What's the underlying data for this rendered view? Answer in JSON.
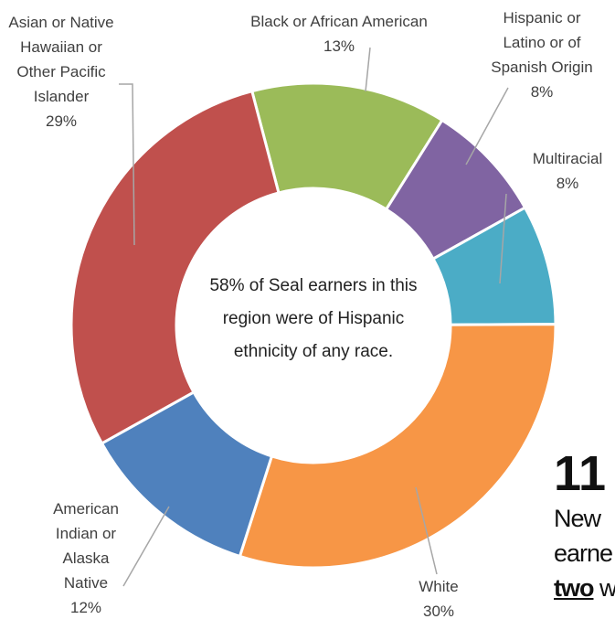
{
  "chart_data": {
    "type": "donut",
    "annotation": "58% of Seal earners in this region were of Hispanic ethnicity of any race.",
    "categories": [
      "Black or African American",
      "Hispanic or Latino or of Spanish Origin",
      "Multiracial",
      "White",
      "American Indian or Alaska Native",
      "Asian or Native Hawaiian or Other Pacific Islander"
    ],
    "values": [
      13,
      8,
      8,
      30,
      12,
      29
    ],
    "value_labels": [
      "13%",
      "8%",
      "8%",
      "30%",
      "12%",
      "29%"
    ],
    "colors": [
      "#9bbb59",
      "#8064a2",
      "#4bacc6",
      "#f79646",
      "#4f81bd",
      "#c0504d"
    ]
  },
  "side_text": {
    "number": "11",
    "line1": "New",
    "line2": "earne",
    "line3_bold": "two",
    "line3_rest": " w"
  }
}
